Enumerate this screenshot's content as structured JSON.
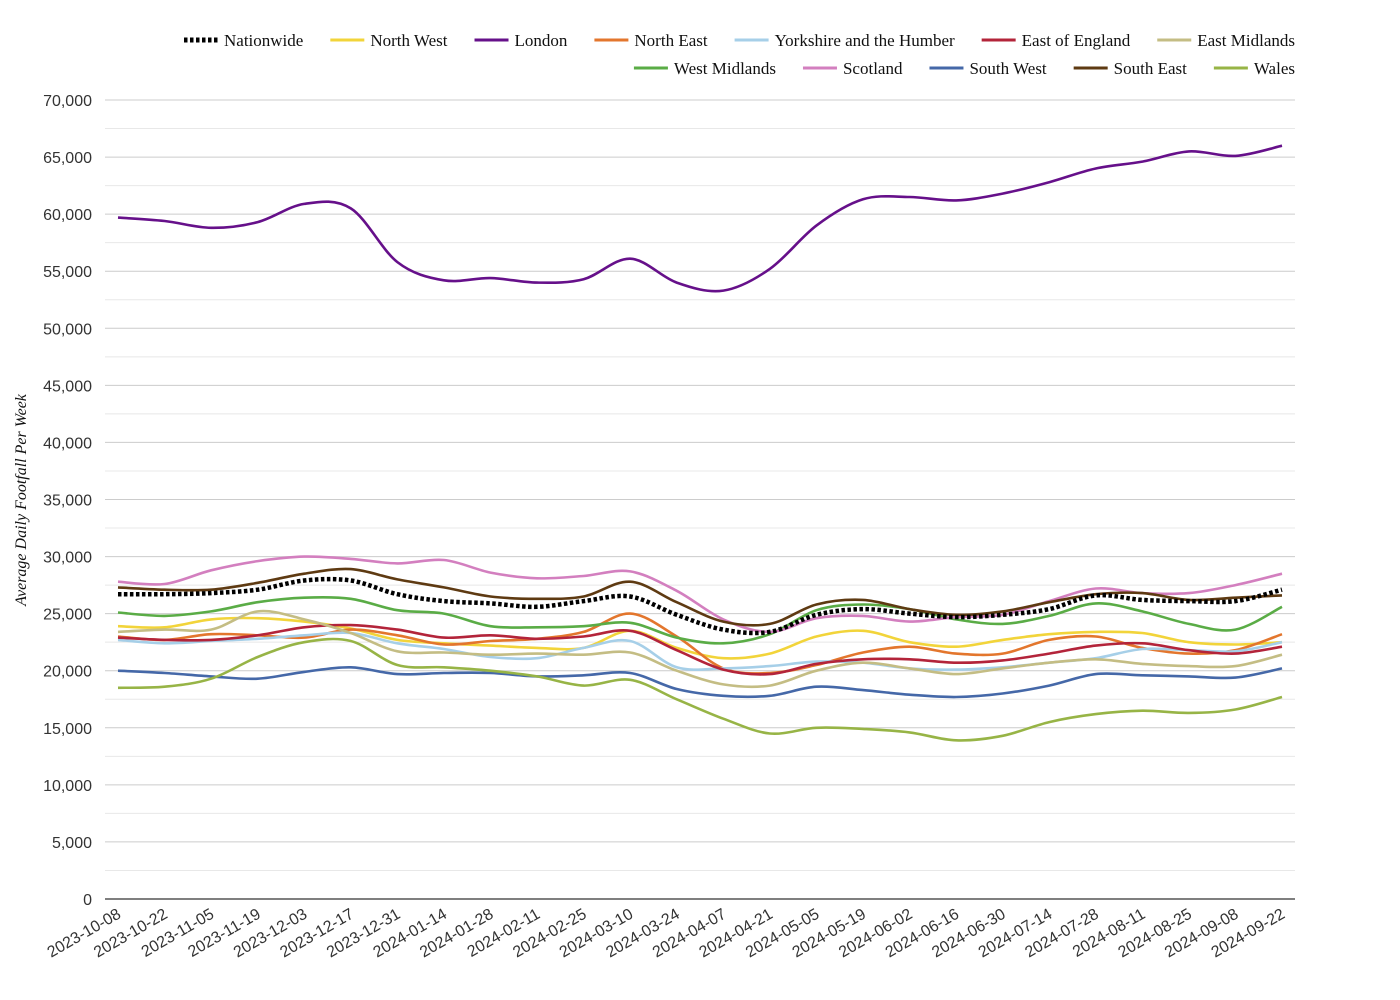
{
  "chart_data": {
    "type": "line",
    "title": "",
    "xlabel": "",
    "ylabel": "Average Daily Footfall Per Week",
    "ylim": [
      0,
      70000
    ],
    "yticks": [
      0,
      5000,
      10000,
      15000,
      20000,
      25000,
      30000,
      35000,
      40000,
      45000,
      50000,
      55000,
      60000,
      65000,
      70000
    ],
    "ytick_labels": [
      "0",
      "5,000",
      "10,000",
      "15,000",
      "20,000",
      "25,000",
      "30,000",
      "35,000",
      "40,000",
      "45,000",
      "50,000",
      "55,000",
      "60,000",
      "65,000",
      "70,000"
    ],
    "x_tick_labels": [
      "2023-10-08",
      "2023-10-22",
      "2023-11-05",
      "2023-11-19",
      "2023-12-03",
      "2023-12-17",
      "2023-12-31",
      "2024-01-14",
      "2024-01-28",
      "2024-02-11",
      "2024-02-25",
      "2024-03-10",
      "2024-03-24",
      "2024-04-07",
      "2024-04-21",
      "2024-05-05",
      "2024-05-19",
      "2024-06-02",
      "2024-06-16",
      "2024-06-30",
      "2024-07-14",
      "2024-07-28",
      "2024-08-11",
      "2024-08-25",
      "2024-09-08",
      "2024-09-22"
    ],
    "grid": true,
    "legend_position": "top-right",
    "series": [
      {
        "name": "Nationwide",
        "color": "#000000",
        "dashed": true,
        "values": [
          26700,
          26700,
          26800,
          27100,
          27900,
          27900,
          26700,
          26100,
          25900,
          25600,
          26100,
          26500,
          24900,
          23600,
          23400,
          24900,
          25400,
          25000,
          24700,
          24900,
          25400,
          26600,
          26200,
          26100,
          26100,
          27100
        ]
      },
      {
        "name": "North West",
        "color": "#f2d43a",
        "values": [
          23900,
          23800,
          24500,
          24600,
          24300,
          23700,
          22700,
          22400,
          22200,
          22000,
          22000,
          23500,
          22000,
          21100,
          21500,
          23000,
          23500,
          22500,
          22100,
          22700,
          23200,
          23400,
          23300,
          22500,
          22300,
          22500
        ]
      },
      {
        "name": "London",
        "color": "#66108a",
        "values": [
          59700,
          59400,
          58800,
          59300,
          60900,
          60500,
          55800,
          54200,
          54400,
          54000,
          54300,
          56100,
          54000,
          53300,
          55200,
          59000,
          61300,
          61500,
          61200,
          61800,
          62800,
          64000,
          64600,
          65500,
          65100,
          66000
        ]
      },
      {
        "name": "North East",
        "color": "#e3762d",
        "values": [
          23000,
          22700,
          23200,
          23100,
          22900,
          23600,
          23100,
          22300,
          22600,
          22800,
          23400,
          25000,
          23000,
          20200,
          19800,
          20500,
          21600,
          22100,
          21500,
          21500,
          22700,
          23000,
          22000,
          21500,
          21800,
          23200
        ]
      },
      {
        "name": "Yorkshire and the Humber",
        "color": "#a6cfe8",
        "values": [
          22700,
          22400,
          22600,
          22800,
          23100,
          23300,
          22400,
          21900,
          21200,
          21100,
          22000,
          22600,
          20300,
          20200,
          20400,
          20800,
          20700,
          20200,
          20100,
          20300,
          20700,
          21100,
          21900,
          21800,
          21700,
          22500
        ]
      },
      {
        "name": "East of England",
        "color": "#b3243a",
        "values": [
          22900,
          22700,
          22700,
          23100,
          23800,
          24000,
          23600,
          22900,
          23100,
          22800,
          23000,
          23500,
          21800,
          20100,
          19700,
          20600,
          21000,
          21000,
          20700,
          20900,
          21500,
          22200,
          22400,
          21800,
          21500,
          22100
        ]
      },
      {
        "name": "East Midlands",
        "color": "#c4bd84",
        "values": [
          23400,
          23600,
          23600,
          25200,
          24500,
          23300,
          21700,
          21600,
          21400,
          21500,
          21400,
          21600,
          20000,
          18800,
          18700,
          20000,
          20700,
          20200,
          19700,
          20200,
          20700,
          21000,
          20600,
          20400,
          20400,
          21400
        ]
      },
      {
        "name": "West Midlands",
        "color": "#5aac46",
        "values": [
          25100,
          24800,
          25200,
          26000,
          26400,
          26300,
          25300,
          25000,
          23900,
          23800,
          23900,
          24200,
          22900,
          22400,
          23200,
          25300,
          25800,
          25400,
          24500,
          24100,
          24800,
          25900,
          25200,
          24100,
          23600,
          25600
        ]
      },
      {
        "name": "Scotland",
        "color": "#d37fbf",
        "values": [
          27800,
          27600,
          28800,
          29600,
          30000,
          29800,
          29400,
          29700,
          28600,
          28100,
          28300,
          28700,
          27000,
          24500,
          23400,
          24600,
          24800,
          24300,
          24700,
          24900,
          26100,
          27200,
          26800,
          26800,
          27500,
          28500
        ]
      },
      {
        "name": "South West",
        "color": "#4568a8",
        "values": [
          20000,
          19800,
          19500,
          19300,
          19900,
          20300,
          19700,
          19800,
          19800,
          19500,
          19600,
          19800,
          18400,
          17800,
          17800,
          18600,
          18300,
          17900,
          17700,
          18000,
          18700,
          19700,
          19600,
          19500,
          19400,
          20200
        ]
      },
      {
        "name": "South East",
        "color": "#5e3a12",
        "values": [
          27300,
          27100,
          27100,
          27700,
          28500,
          28900,
          28000,
          27300,
          26500,
          26300,
          26500,
          27800,
          26000,
          24300,
          24100,
          25800,
          26200,
          25400,
          24900,
          25200,
          26000,
          26700,
          26800,
          26200,
          26400,
          26600
        ]
      },
      {
        "name": "Wales",
        "color": "#97b446",
        "values": [
          18500,
          18600,
          19300,
          21200,
          22500,
          22600,
          20500,
          20300,
          20000,
          19500,
          18700,
          19200,
          17500,
          15800,
          14500,
          15000,
          14900,
          14600,
          13900,
          14300,
          15500,
          16200,
          16500,
          16300,
          16600,
          17700
        ]
      }
    ]
  }
}
